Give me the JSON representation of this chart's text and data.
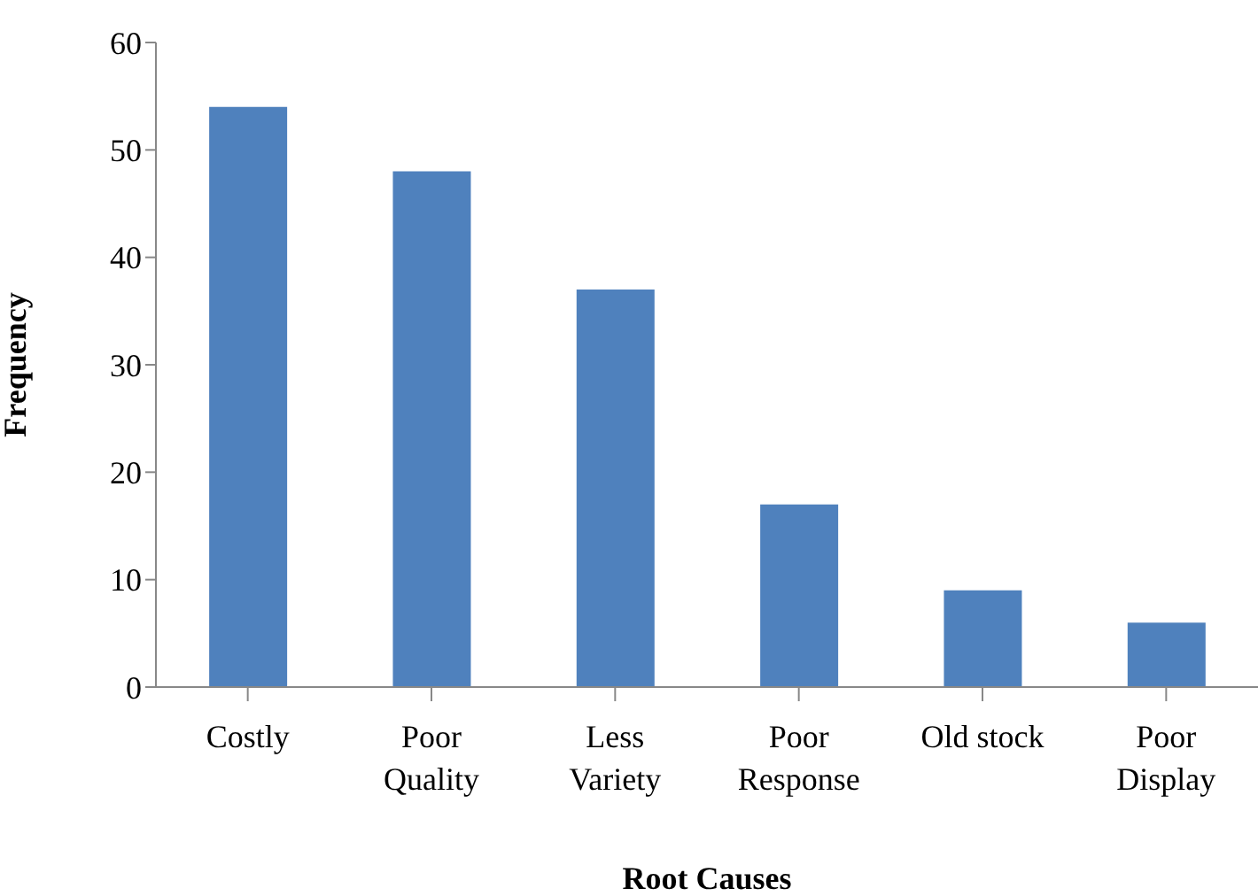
{
  "chart_data": {
    "type": "bar",
    "xlabel": "Root Causes",
    "ylabel": "Frequency",
    "categories": [
      "Costly",
      "Poor Quality",
      "Less Variety",
      "Poor Response",
      "Old stock",
      "Poor Display"
    ],
    "values": [
      54,
      48,
      37,
      17,
      9,
      6
    ],
    "color": "#4f81bd",
    "ylim": [
      0,
      60
    ],
    "yticks": [
      0,
      10,
      20,
      30,
      40,
      50,
      60
    ],
    "grid": false,
    "legend": false
  }
}
